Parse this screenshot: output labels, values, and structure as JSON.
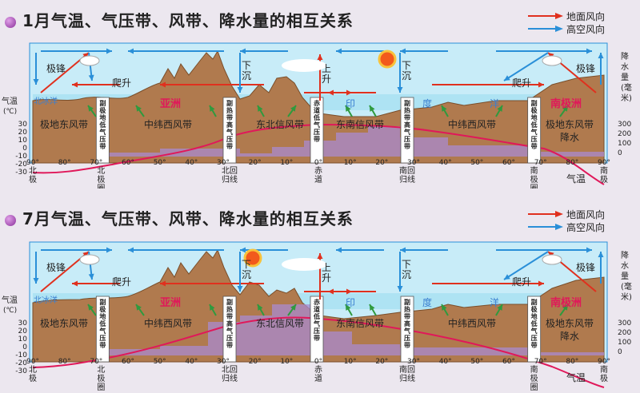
{
  "panels": [
    {
      "title": "1月气温、气压带、风带、降水量的相互关系",
      "wind_belts": [
        "极地东风带",
        "中纬西风带",
        "东北信风带",
        "东南信风带",
        "中纬西风带",
        "极地东风带"
      ],
      "pressure_belts": [
        "副极地低气压带",
        "副热带高气压带",
        "赤道低气压带",
        "副热带高气压带",
        "副极地低气压带"
      ],
      "regions": [
        "北冰洋",
        "亚洲",
        "印",
        "度",
        "洋",
        "南极洲"
      ],
      "vertical_labels": [
        "极锋",
        "爬升",
        "下沉",
        "上升",
        "下沉",
        "爬升",
        "极锋"
      ],
      "extra_labels": [
        "降水"
      ]
    },
    {
      "title": "7月气温、气压带、风带、降水量的相互关系",
      "wind_belts": [
        "极地东风带",
        "中纬西风带",
        "东北信风带",
        "东南信风带",
        "中纬西风带",
        "极地东风带"
      ],
      "pressure_belts": [
        "副极地低气压带",
        "副热带高气压带",
        "赤道低气压带",
        "副热带高气压带",
        "副极地低气压带"
      ],
      "regions": [
        "北冰洋",
        "亚洲",
        "印",
        "度",
        "洋",
        "南极洲"
      ],
      "vertical_labels": [
        "极锋",
        "爬升",
        "下沉",
        "上升",
        "下沉",
        "爬升",
        "极锋"
      ],
      "extra_labels": [
        "降水"
      ]
    }
  ],
  "legend": {
    "surface": "地面风向",
    "upper": "高空风向"
  },
  "axis": {
    "left_title": [
      "气温",
      "(℃)"
    ],
    "left_ticks": [
      "30",
      "20",
      "10",
      "0",
      "-10",
      "-20",
      "-30"
    ],
    "right_title": [
      "降",
      "水",
      "量",
      "(毫",
      "米)"
    ],
    "right_ticks": [
      "300",
      "200",
      "100",
      "0"
    ],
    "lat_ticks": [
      "90°",
      "80°",
      "70°",
      "60°",
      "50°",
      "40°",
      "30°",
      "20°",
      "10°",
      "0°",
      "10°",
      "20°",
      "30°",
      "40°",
      "50°",
      "60°",
      "70°",
      "80°",
      "90°"
    ],
    "sub_labels": [
      [
        "北",
        "极"
      ],
      [
        "北",
        "极",
        "圈"
      ],
      [
        "北回",
        "归线"
      ],
      [
        "赤",
        "道"
      ],
      [
        "南回",
        "归线"
      ],
      [
        "南",
        "极",
        "圈"
      ],
      [
        "南",
        "极"
      ]
    ],
    "temp_label": "气温"
  },
  "colors": {
    "land": "#b07a4e",
    "ocean": "#aee3f3",
    "temp": "#e0185a",
    "rain": "#a98bd0",
    "surface_arrow": "#e0301e",
    "upper_arrow": "#2a8fd8"
  }
}
